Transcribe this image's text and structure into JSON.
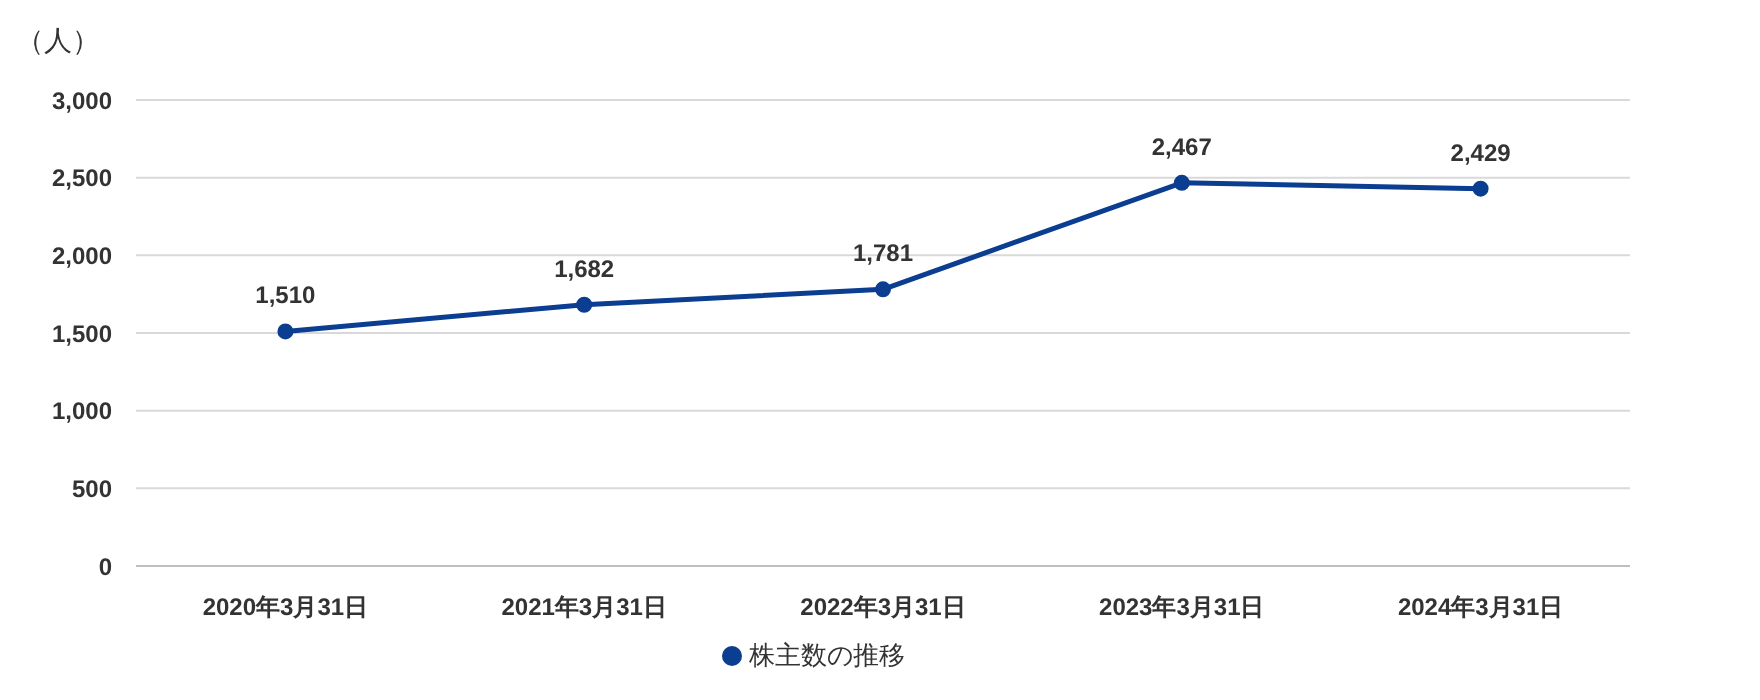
{
  "chart_data": {
    "type": "line",
    "ylabel": "（人）",
    "categories": [
      "2020年3月31日",
      "2021年3月31日",
      "2022年3月31日",
      "2023年3月31日",
      "2024年3月31日"
    ],
    "series": [
      {
        "name": "株主数の推移",
        "color": "#0b3d91",
        "values": [
          1510,
          1682,
          1781,
          2467,
          2429
        ],
        "value_labels": [
          "1,510",
          "1,682",
          "1,781",
          "2,467",
          "2,429"
        ]
      }
    ],
    "ylim": [
      0,
      3000
    ],
    "yticks": [
      {
        "value": 0,
        "label": "0"
      },
      {
        "value": 500,
        "label": "500"
      },
      {
        "value": 1000,
        "label": "1,000"
      },
      {
        "value": 1500,
        "label": "1,500"
      },
      {
        "value": 2000,
        "label": "2,000"
      },
      {
        "value": 2500,
        "label": "2,500"
      },
      {
        "value": 3000,
        "label": "3,000"
      }
    ],
    "grid": "y",
    "legend": "bottom",
    "marker": "circle",
    "line_style": "solid"
  }
}
